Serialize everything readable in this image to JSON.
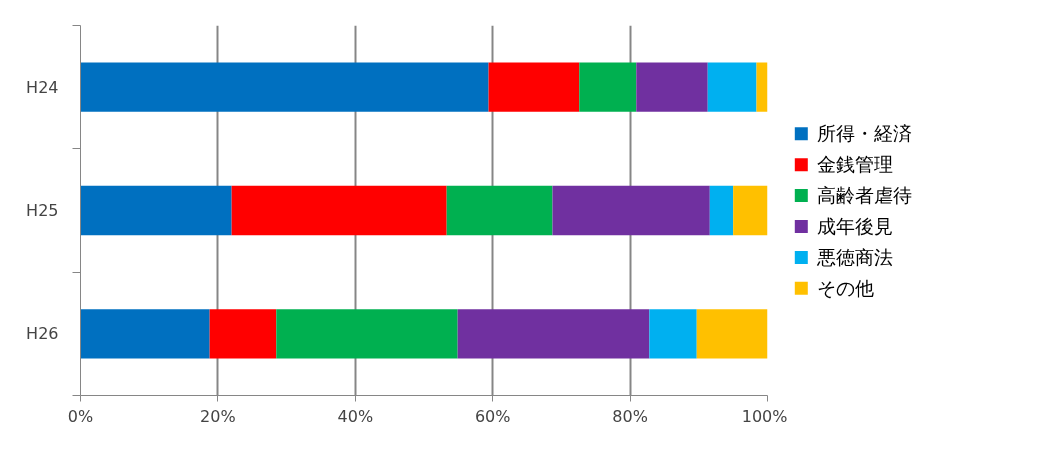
{
  "chart_data": {
    "type": "bar",
    "orientation": "horizontal",
    "stacked": true,
    "categories": [
      "H24",
      "H25",
      "H26"
    ],
    "series": [
      {
        "name": "所得・経済",
        "color": "#0070c0",
        "values": [
          59.4,
          22.0,
          18.8
        ]
      },
      {
        "name": "金銭管理",
        "color": "#ff0000",
        "values": [
          13.2,
          31.3,
          9.7
        ]
      },
      {
        "name": "高齢者虐待",
        "color": "#00b050",
        "values": [
          8.3,
          15.4,
          26.4
        ]
      },
      {
        "name": "成年後見",
        "color": "#7030a0",
        "values": [
          10.4,
          22.9,
          27.9
        ]
      },
      {
        "name": "悪徳商法",
        "color": "#00b0f0",
        "values": [
          7.1,
          3.4,
          6.9
        ]
      },
      {
        "name": "その他",
        "color": "#ffc000",
        "values": [
          1.6,
          5.0,
          10.3
        ]
      }
    ],
    "xlim": [
      0,
      100
    ],
    "xticks": [
      {
        "value": 0,
        "label": "0%"
      },
      {
        "value": 20,
        "label": "20%"
      },
      {
        "value": 40,
        "label": "40%"
      },
      {
        "value": 60,
        "label": "60%"
      },
      {
        "value": 80,
        "label": "80%"
      },
      {
        "value": 100,
        "label": "100%"
      }
    ],
    "grid": "x",
    "legend": "right"
  }
}
